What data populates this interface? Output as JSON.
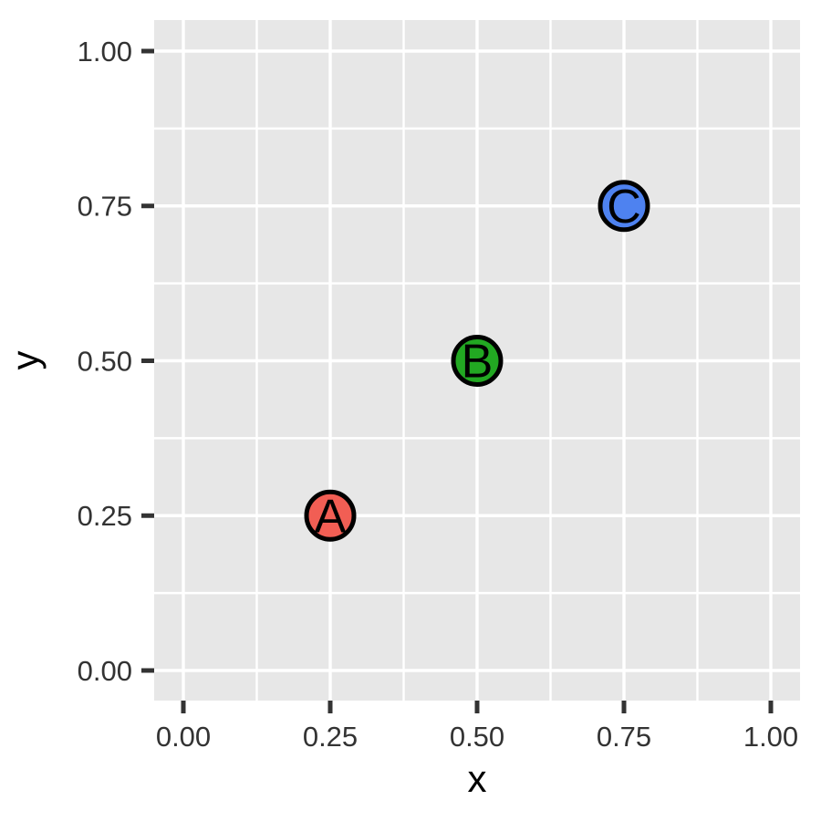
{
  "chart_data": {
    "type": "scatter",
    "title": "",
    "xlabel": "x",
    "ylabel": "y",
    "x_ticks": [
      {
        "value": 0.0,
        "label": "0.00"
      },
      {
        "value": 0.25,
        "label": "0.25"
      },
      {
        "value": 0.5,
        "label": "0.50"
      },
      {
        "value": 0.75,
        "label": "0.75"
      },
      {
        "value": 1.0,
        "label": "1.00"
      }
    ],
    "y_ticks": [
      {
        "value": 0.0,
        "label": "0.00"
      },
      {
        "value": 0.25,
        "label": "0.25"
      },
      {
        "value": 0.5,
        "label": "0.50"
      },
      {
        "value": 0.75,
        "label": "0.75"
      },
      {
        "value": 1.0,
        "label": "1.00"
      }
    ],
    "minor_ticks": [
      0.125,
      0.375,
      0.625,
      0.875
    ],
    "xlim": [
      -0.05,
      1.05
    ],
    "ylim": [
      -0.05,
      1.05
    ],
    "grid": true,
    "legend": "none",
    "points": [
      {
        "label": "A",
        "x": 0.25,
        "y": 0.25,
        "fill": "#F15E54"
      },
      {
        "label": "B",
        "x": 0.5,
        "y": 0.5,
        "fill": "#22A822"
      },
      {
        "label": "C",
        "x": 0.75,
        "y": 0.75,
        "fill": "#4E82F0"
      }
    ],
    "colors": {
      "panel_background": "#E7E7E7",
      "grid_line": "#FFFFFF",
      "tick_mark": "#333333",
      "tick_label": "#333333",
      "axis_title": "#000000",
      "point_outline": "#000000",
      "point_label": "#000000",
      "outer_background": "#FFFFFF"
    }
  }
}
